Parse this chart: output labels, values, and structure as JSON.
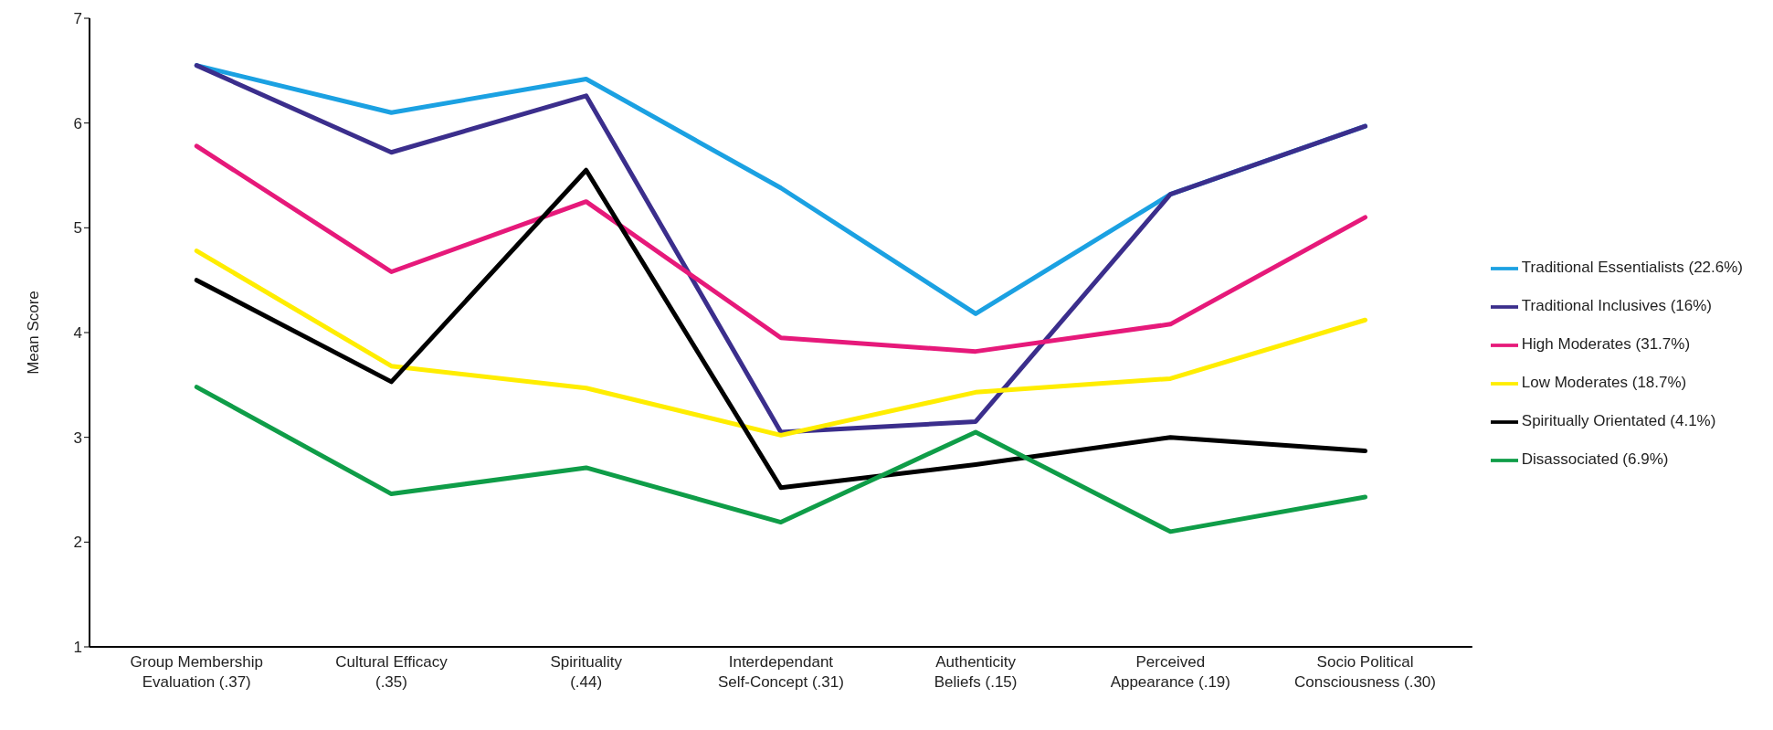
{
  "chart_data": {
    "type": "line",
    "ylabel": "Mean Score",
    "categories": [
      "Group Membership Evaluation (.37)",
      "Cultural Efficacy (.35)",
      "Spirituality (.44)",
      "Interdependant Self-Concept (.31)",
      "Authenticity Beliefs (.15)",
      "Perceived Appearance (.19)",
      "Socio Political Consciousness (.30)"
    ],
    "series": [
      {
        "name": "Traditional Essentialists (22.6%)",
        "color": "#1ba1e2",
        "values": [
          6.55,
          6.1,
          6.42,
          5.38,
          4.18,
          5.32,
          5.97
        ]
      },
      {
        "name": "Traditional Inclusives (16%)",
        "color": "#3b2e8c",
        "values": [
          6.55,
          5.72,
          6.26,
          3.05,
          3.15,
          5.32,
          5.97
        ]
      },
      {
        "name": "High Moderates (31.7%)",
        "color": "#e6197a",
        "values": [
          5.78,
          4.58,
          5.25,
          3.95,
          3.82,
          4.08,
          5.1
        ]
      },
      {
        "name": "Low Moderates (18.7%)",
        "color": "#ffed00",
        "values": [
          4.78,
          3.68,
          3.47,
          3.02,
          3.43,
          3.56,
          4.12
        ]
      },
      {
        "name": "Spiritually Orientated (4.1%)",
        "color": "#000000",
        "values": [
          4.5,
          3.53,
          5.55,
          2.52,
          2.74,
          3.0,
          2.87
        ]
      },
      {
        "name": "Disassociated (6.9%)",
        "color": "#0f9d48",
        "values": [
          3.48,
          2.46,
          2.71,
          2.19,
          3.05,
          2.1,
          2.43
        ]
      }
    ],
    "ylim": [
      1,
      7
    ],
    "yticks": [
      1,
      2,
      3,
      4,
      5,
      6,
      7
    ],
    "grid": false,
    "legend": "right",
    "marker": "none",
    "line_style": "solid"
  }
}
